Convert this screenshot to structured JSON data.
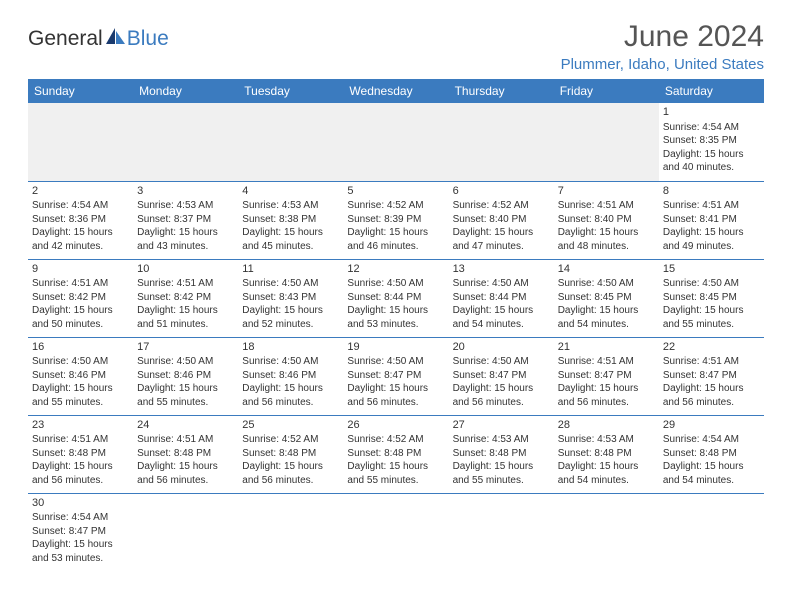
{
  "logo": {
    "part1": "General",
    "part2": "Blue",
    "text_color_1": "#333333",
    "text_color_2": "#3b7bbf"
  },
  "title": "June 2024",
  "location": "Plummer, Idaho, United States",
  "header_bg": "#3b7bbf",
  "day_headers": [
    "Sunday",
    "Monday",
    "Tuesday",
    "Wednesday",
    "Thursday",
    "Friday",
    "Saturday"
  ],
  "weeks": [
    [
      null,
      null,
      null,
      null,
      null,
      null,
      {
        "n": "1",
        "sr": "4:54 AM",
        "ss": "8:35 PM",
        "dl": "15 hours and 40 minutes."
      }
    ],
    [
      {
        "n": "2",
        "sr": "4:54 AM",
        "ss": "8:36 PM",
        "dl": "15 hours and 42 minutes."
      },
      {
        "n": "3",
        "sr": "4:53 AM",
        "ss": "8:37 PM",
        "dl": "15 hours and 43 minutes."
      },
      {
        "n": "4",
        "sr": "4:53 AM",
        "ss": "8:38 PM",
        "dl": "15 hours and 45 minutes."
      },
      {
        "n": "5",
        "sr": "4:52 AM",
        "ss": "8:39 PM",
        "dl": "15 hours and 46 minutes."
      },
      {
        "n": "6",
        "sr": "4:52 AM",
        "ss": "8:40 PM",
        "dl": "15 hours and 47 minutes."
      },
      {
        "n": "7",
        "sr": "4:51 AM",
        "ss": "8:40 PM",
        "dl": "15 hours and 48 minutes."
      },
      {
        "n": "8",
        "sr": "4:51 AM",
        "ss": "8:41 PM",
        "dl": "15 hours and 49 minutes."
      }
    ],
    [
      {
        "n": "9",
        "sr": "4:51 AM",
        "ss": "8:42 PM",
        "dl": "15 hours and 50 minutes."
      },
      {
        "n": "10",
        "sr": "4:51 AM",
        "ss": "8:42 PM",
        "dl": "15 hours and 51 minutes."
      },
      {
        "n": "11",
        "sr": "4:50 AM",
        "ss": "8:43 PM",
        "dl": "15 hours and 52 minutes."
      },
      {
        "n": "12",
        "sr": "4:50 AM",
        "ss": "8:44 PM",
        "dl": "15 hours and 53 minutes."
      },
      {
        "n": "13",
        "sr": "4:50 AM",
        "ss": "8:44 PM",
        "dl": "15 hours and 54 minutes."
      },
      {
        "n": "14",
        "sr": "4:50 AM",
        "ss": "8:45 PM",
        "dl": "15 hours and 54 minutes."
      },
      {
        "n": "15",
        "sr": "4:50 AM",
        "ss": "8:45 PM",
        "dl": "15 hours and 55 minutes."
      }
    ],
    [
      {
        "n": "16",
        "sr": "4:50 AM",
        "ss": "8:46 PM",
        "dl": "15 hours and 55 minutes."
      },
      {
        "n": "17",
        "sr": "4:50 AM",
        "ss": "8:46 PM",
        "dl": "15 hours and 55 minutes."
      },
      {
        "n": "18",
        "sr": "4:50 AM",
        "ss": "8:46 PM",
        "dl": "15 hours and 56 minutes."
      },
      {
        "n": "19",
        "sr": "4:50 AM",
        "ss": "8:47 PM",
        "dl": "15 hours and 56 minutes."
      },
      {
        "n": "20",
        "sr": "4:50 AM",
        "ss": "8:47 PM",
        "dl": "15 hours and 56 minutes."
      },
      {
        "n": "21",
        "sr": "4:51 AM",
        "ss": "8:47 PM",
        "dl": "15 hours and 56 minutes."
      },
      {
        "n": "22",
        "sr": "4:51 AM",
        "ss": "8:47 PM",
        "dl": "15 hours and 56 minutes."
      }
    ],
    [
      {
        "n": "23",
        "sr": "4:51 AM",
        "ss": "8:48 PM",
        "dl": "15 hours and 56 minutes."
      },
      {
        "n": "24",
        "sr": "4:51 AM",
        "ss": "8:48 PM",
        "dl": "15 hours and 56 minutes."
      },
      {
        "n": "25",
        "sr": "4:52 AM",
        "ss": "8:48 PM",
        "dl": "15 hours and 56 minutes."
      },
      {
        "n": "26",
        "sr": "4:52 AM",
        "ss": "8:48 PM",
        "dl": "15 hours and 55 minutes."
      },
      {
        "n": "27",
        "sr": "4:53 AM",
        "ss": "8:48 PM",
        "dl": "15 hours and 55 minutes."
      },
      {
        "n": "28",
        "sr": "4:53 AM",
        "ss": "8:48 PM",
        "dl": "15 hours and 54 minutes."
      },
      {
        "n": "29",
        "sr": "4:54 AM",
        "ss": "8:48 PM",
        "dl": "15 hours and 54 minutes."
      }
    ],
    [
      {
        "n": "30",
        "sr": "4:54 AM",
        "ss": "8:47 PM",
        "dl": "15 hours and 53 minutes."
      },
      null,
      null,
      null,
      null,
      null,
      null
    ]
  ],
  "labels": {
    "sunrise": "Sunrise:",
    "sunset": "Sunset:",
    "daylight": "Daylight:"
  }
}
